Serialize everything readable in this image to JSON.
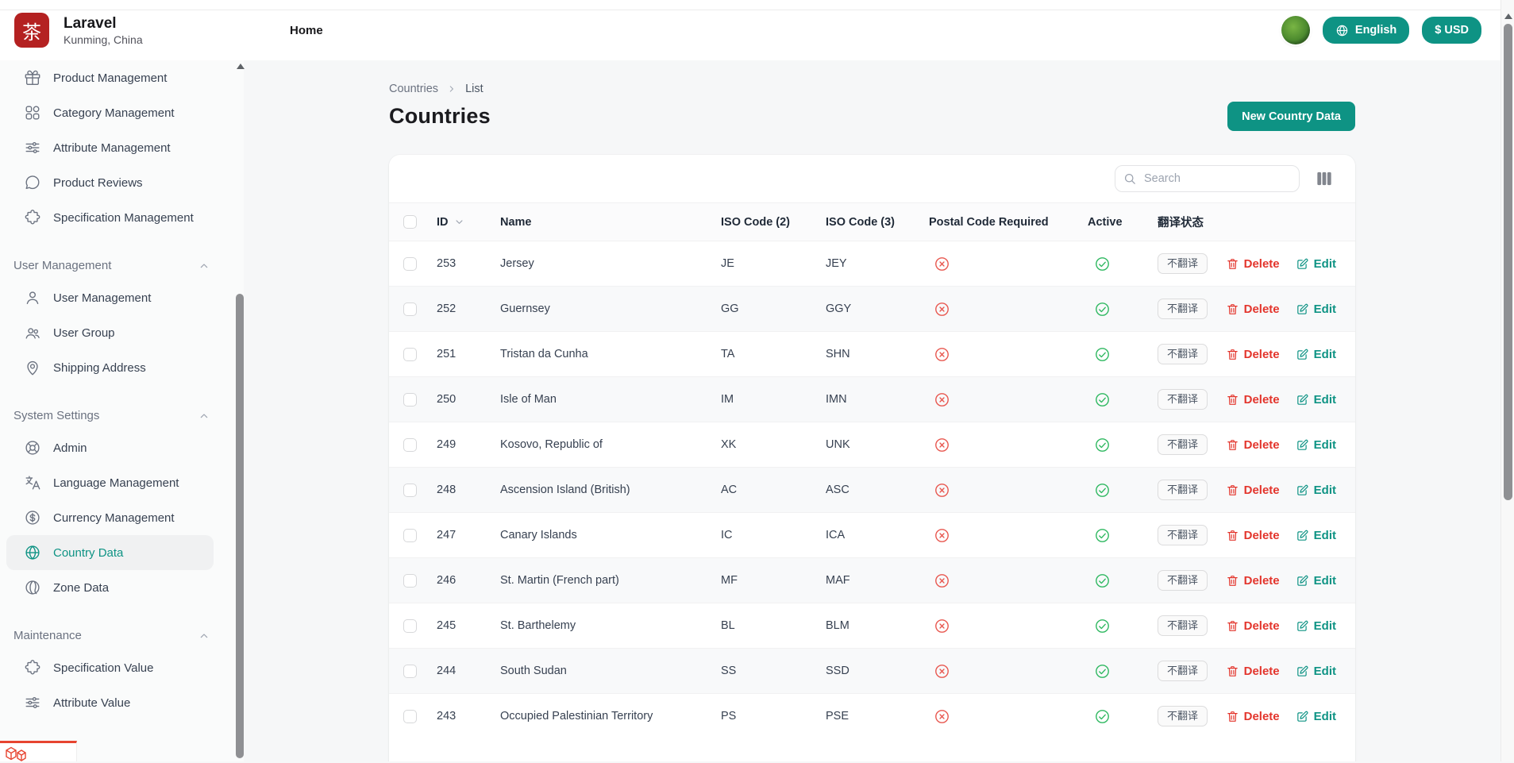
{
  "colors": {
    "accent_teal": "#0e9384",
    "brand_red": "#b42121",
    "danger_red": "#e3352c",
    "success_green": "#2eb860",
    "postal_x_red": "#e8574f"
  },
  "brand": {
    "logo_glyph": "茶",
    "name": "Laravel",
    "location": "Kunming, China"
  },
  "topbar": {
    "home_label": "Home",
    "language_button": {
      "icon": "globe-icon",
      "label": "English"
    },
    "currency_button": {
      "label": "$ USD"
    }
  },
  "sidebar": {
    "sections": [
      {
        "header": null,
        "items": [
          {
            "icon": "gift-icon",
            "label": "Product Management"
          },
          {
            "icon": "category-grid-icon",
            "label": "Category Management"
          },
          {
            "icon": "sliders-icon",
            "label": "Attribute Management"
          },
          {
            "icon": "chat-bubble-icon",
            "label": "Product Reviews"
          },
          {
            "icon": "puzzle-icon",
            "label": "Specification Management"
          }
        ]
      },
      {
        "header": "User Management",
        "header_icon": "chevron-up-icon",
        "items": [
          {
            "icon": "user-icon",
            "label": "User Management"
          },
          {
            "icon": "users-icon",
            "label": "User Group"
          },
          {
            "icon": "map-pin-icon",
            "label": "Shipping Address"
          }
        ]
      },
      {
        "header": "System Settings",
        "header_icon": "chevron-up-icon",
        "items": [
          {
            "icon": "wheel-icon",
            "label": "Admin"
          },
          {
            "icon": "translate-icon",
            "label": "Language Management"
          },
          {
            "icon": "dollar-circle-icon",
            "label": "Currency Management"
          },
          {
            "icon": "globe-icon",
            "label": "Country Data",
            "active": true
          },
          {
            "icon": "globe-meridian-icon",
            "label": "Zone Data"
          }
        ]
      },
      {
        "header": "Maintenance",
        "header_icon": "chevron-up-icon",
        "items": [
          {
            "icon": "puzzle-icon",
            "label": "Specification Value"
          },
          {
            "icon": "sliders-icon",
            "label": "Attribute Value"
          }
        ]
      }
    ]
  },
  "breadcrumb": {
    "items": [
      "Countries",
      "List"
    ]
  },
  "page": {
    "title": "Countries",
    "new_button_label": "New Country Data"
  },
  "toolbar": {
    "search_placeholder": "Search",
    "columns_icon": "columns-icon"
  },
  "table": {
    "headers": [
      "ID",
      "Name",
      "ISO Code (2)",
      "ISO Code (3)",
      "Postal Code Required",
      "Active",
      "翻译状态"
    ],
    "sort_column": "ID",
    "action_labels": {
      "delete": "Delete",
      "edit": "Edit"
    },
    "rows": [
      {
        "id": "253",
        "name": "Jersey",
        "iso2": "JE",
        "iso3": "JEY",
        "postal_code_required": false,
        "active": true,
        "translation_status": "不翻译"
      },
      {
        "id": "252",
        "name": "Guernsey",
        "iso2": "GG",
        "iso3": "GGY",
        "postal_code_required": false,
        "active": true,
        "translation_status": "不翻译"
      },
      {
        "id": "251",
        "name": "Tristan da Cunha",
        "iso2": "TA",
        "iso3": "SHN",
        "postal_code_required": false,
        "active": true,
        "translation_status": "不翻译"
      },
      {
        "id": "250",
        "name": "Isle of Man",
        "iso2": "IM",
        "iso3": "IMN",
        "postal_code_required": false,
        "active": true,
        "translation_status": "不翻译"
      },
      {
        "id": "249",
        "name": "Kosovo, Republic of",
        "iso2": "XK",
        "iso3": "UNK",
        "postal_code_required": false,
        "active": true,
        "translation_status": "不翻译"
      },
      {
        "id": "248",
        "name": "Ascension Island (British)",
        "iso2": "AC",
        "iso3": "ASC",
        "postal_code_required": false,
        "active": true,
        "translation_status": "不翻译"
      },
      {
        "id": "247",
        "name": "Canary Islands",
        "iso2": "IC",
        "iso3": "ICA",
        "postal_code_required": false,
        "active": true,
        "translation_status": "不翻译"
      },
      {
        "id": "246",
        "name": "St. Martin (French part)",
        "iso2": "MF",
        "iso3": "MAF",
        "postal_code_required": false,
        "active": true,
        "translation_status": "不翻译"
      },
      {
        "id": "245",
        "name": "St. Barthelemy",
        "iso2": "BL",
        "iso3": "BLM",
        "postal_code_required": false,
        "active": true,
        "translation_status": "不翻译"
      },
      {
        "id": "244",
        "name": "South Sudan",
        "iso2": "SS",
        "iso3": "SSD",
        "postal_code_required": false,
        "active": true,
        "translation_status": "不翻译"
      },
      {
        "id": "243",
        "name": "Occupied Palestinian Territory",
        "iso2": "PS",
        "iso3": "PSE",
        "postal_code_required": false,
        "active": true,
        "translation_status": "不翻译"
      }
    ]
  }
}
